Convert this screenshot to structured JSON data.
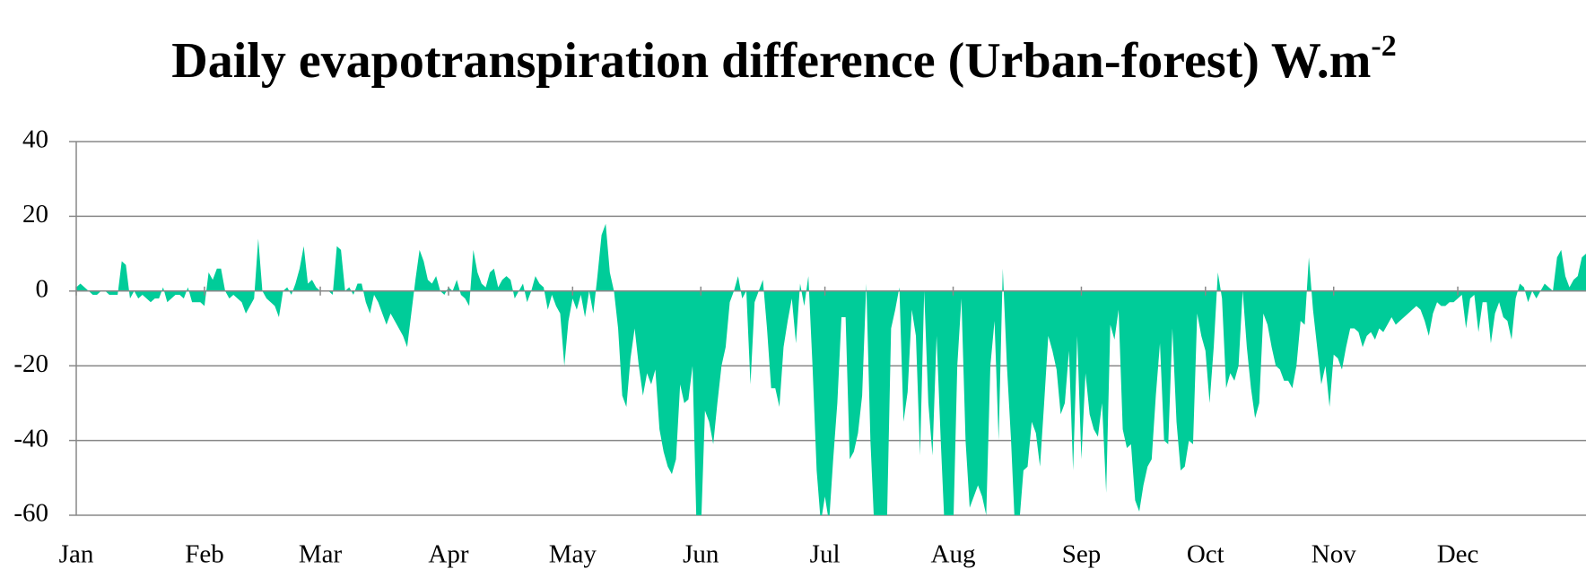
{
  "chart_data": {
    "type": "area",
    "title": "Daily evapotranspiration difference (Urban-forest) W.m",
    "title_superscript": "-2",
    "color": "#00cc99",
    "grid": true,
    "ylim": [
      -60,
      40
    ],
    "yticks": [
      -60,
      -40,
      -20,
      0,
      20,
      40
    ],
    "xlim": [
      0,
      365
    ],
    "xticks": [
      {
        "value": 0,
        "label": "Jan"
      },
      {
        "value": 31,
        "label": "Feb"
      },
      {
        "value": 59,
        "label": "Mar"
      },
      {
        "value": 90,
        "label": "Apr"
      },
      {
        "value": 120,
        "label": "May"
      },
      {
        "value": 151,
        "label": "Jun"
      },
      {
        "value": 181,
        "label": "Jul"
      },
      {
        "value": 212,
        "label": "Aug"
      },
      {
        "value": 243,
        "label": "Sep"
      },
      {
        "value": 273,
        "label": "Oct"
      },
      {
        "value": 304,
        "label": "Nov"
      },
      {
        "value": 334,
        "label": "Dec"
      }
    ],
    "values": [
      1,
      2,
      1,
      0,
      -1,
      -1,
      0,
      0,
      -1,
      -1,
      -1,
      8,
      7,
      -2,
      0,
      -2,
      -1,
      -2,
      -3,
      -2,
      -2,
      1,
      -3,
      -2,
      -1,
      -1,
      -2,
      1,
      -3,
      -3,
      -3,
      -4,
      5,
      3,
      6,
      6,
      0,
      -2,
      -1,
      -2,
      -3,
      -6,
      -4,
      -2,
      14,
      0,
      -2,
      -3,
      -4,
      -7,
      0,
      1,
      -1,
      2,
      6,
      12,
      2,
      3,
      1,
      0,
      0,
      0,
      -1,
      12,
      11,
      0,
      1,
      -1,
      2,
      2,
      -3,
      -6,
      -1,
      -3,
      -6,
      -9,
      -6,
      -8,
      -10,
      -12,
      -15,
      -6,
      3,
      11,
      8,
      3,
      2,
      4,
      0,
      -1,
      1,
      0,
      3,
      -1,
      -2,
      -4,
      11,
      5,
      2,
      1,
      5,
      6,
      1,
      3,
      4,
      3,
      -2,
      0,
      2,
      -3,
      0,
      4,
      2,
      1,
      -5,
      -1,
      -4,
      -6,
      -20,
      -8,
      -2,
      -5,
      -1,
      -7,
      0,
      -6,
      4,
      15,
      18,
      5,
      0,
      -10,
      -28,
      -31,
      -18,
      -10,
      -20,
      -28,
      -22,
      -25,
      -21,
      -37,
      -43,
      -47,
      -49,
      -45,
      -25,
      -30,
      -29,
      -20,
      -65,
      -65,
      -32,
      -35,
      -41,
      -30,
      -20,
      -15,
      -3,
      0,
      4,
      -2,
      0,
      -25,
      -3,
      0,
      3,
      -10,
      -26,
      -26,
      -31,
      -15,
      -8,
      -2,
      -14,
      2,
      -4,
      4,
      -20,
      -48,
      -62,
      -55,
      -62,
      -45,
      -30,
      -7,
      -7,
      -45,
      -43,
      -38,
      -28,
      2,
      -40,
      -65,
      -65,
      -65,
      -62,
      -10,
      -5,
      1,
      -35,
      -27,
      -5,
      -12,
      -44,
      0,
      -30,
      -44,
      -12,
      -40,
      -65,
      -65,
      -65,
      -20,
      -2,
      -40,
      -58,
      -55,
      -52,
      -55,
      -60,
      -20,
      -8,
      -40,
      6,
      -20,
      -40,
      -65,
      -62,
      -48,
      -47,
      -35,
      -38,
      -47,
      -30,
      -12,
      -16,
      -21,
      -33,
      -30,
      -16,
      -48,
      -12,
      -45,
      -22,
      -33,
      -37,
      -39,
      -30,
      -54,
      -9,
      -13,
      -5,
      -37,
      -42,
      -41,
      -56,
      -59,
      -52,
      -47,
      -45,
      -28,
      -14,
      -40,
      -41,
      -10,
      -35,
      -48,
      -47,
      -40,
      -41,
      -6,
      -12,
      -16,
      -30,
      -15,
      5,
      -2,
      -26,
      -22,
      -24,
      -20,
      0,
      -15,
      -26,
      -34,
      -30,
      -6,
      -9,
      -15,
      -20,
      -21,
      -24,
      -24,
      -26,
      -20,
      -8,
      -9,
      9,
      -5,
      -15,
      -25,
      -20,
      -31,
      -17,
      -18,
      -21,
      -15,
      -10,
      -10,
      -11,
      -15,
      -12,
      -11,
      -13,
      -10,
      -11,
      -9,
      -7,
      -9,
      -8,
      -7,
      -6,
      -5,
      -4,
      -5,
      -8,
      -12,
      -6,
      -3,
      -4,
      -4,
      -3,
      -3,
      -2,
      -1,
      -10,
      -2,
      -1,
      -11,
      -3,
      -3,
      -14,
      -6,
      -3,
      -7,
      -8,
      -13,
      -2,
      2,
      1,
      -3,
      0,
      -2,
      0,
      2,
      1,
      0,
      9,
      11,
      4,
      1,
      3,
      4,
      9,
      10
    ]
  }
}
